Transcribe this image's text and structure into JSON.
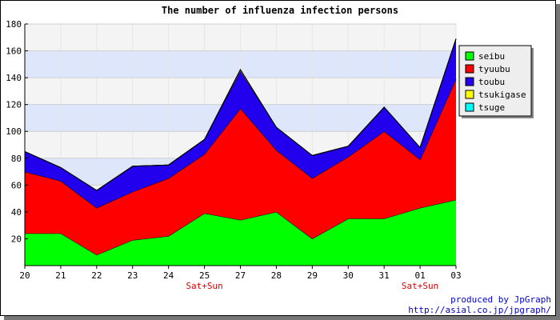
{
  "chart_data": {
    "type": "area",
    "stacked": true,
    "title": "The number of influenza infection persons",
    "categories": [
      "20",
      "21",
      "22",
      "23",
      "24",
      "25",
      "27",
      "28",
      "29",
      "30",
      "31",
      "01",
      "03"
    ],
    "sub_labels": [
      "",
      "",
      "",
      "",
      "",
      "Sat+Sun",
      "",
      "",
      "",
      "",
      "",
      "Sat+Sun",
      ""
    ],
    "ylim": [
      0,
      180
    ],
    "yticks": [
      20,
      40,
      60,
      80,
      100,
      120,
      140,
      160,
      180
    ],
    "grid": true,
    "band_colors": [
      "#f4f4f4",
      "#dde6fb"
    ],
    "legend_position": "right",
    "series": [
      {
        "name": "seibu",
        "color": "#00ff00",
        "values": [
          24,
          24,
          8,
          19,
          22,
          39,
          34,
          40,
          20,
          35,
          35,
          43,
          49
        ]
      },
      {
        "name": "tyuubu",
        "color": "#ff0000",
        "values": [
          46,
          39,
          35,
          36,
          43,
          44,
          83,
          46,
          45,
          46,
          65,
          36,
          90
        ]
      },
      {
        "name": "toubu",
        "color": "#2200ee",
        "values": [
          15,
          10,
          13,
          19,
          10,
          11,
          28,
          17,
          17,
          8,
          18,
          9,
          30
        ]
      },
      {
        "name": "tsukigase",
        "color": "#ffff00",
        "values": [
          0,
          0,
          0,
          0,
          0,
          0,
          1,
          0,
          0,
          0,
          0,
          0,
          0
        ]
      },
      {
        "name": "tsuge",
        "color": "#00ffff",
        "values": [
          0,
          0,
          0,
          0,
          0,
          0,
          0,
          0,
          0,
          0,
          0,
          0,
          0
        ]
      }
    ],
    "footer": {
      "line1": "produced by JpGraph",
      "line2": "http://asial.co.jp/jpgraph/"
    }
  }
}
